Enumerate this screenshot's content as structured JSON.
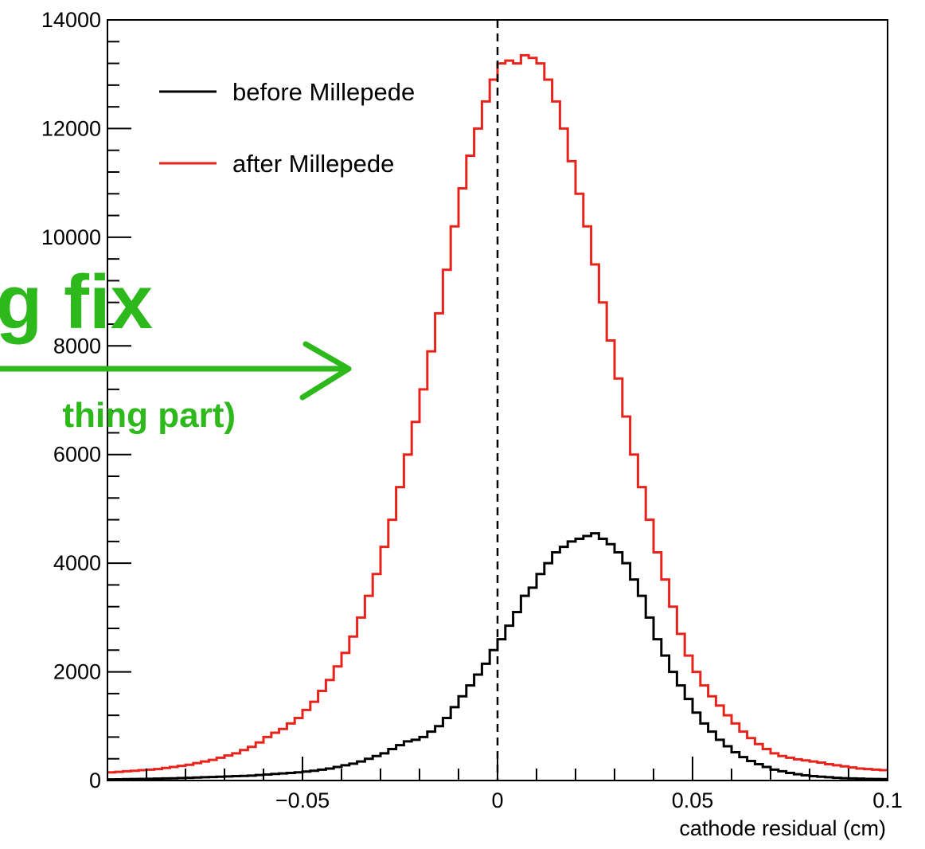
{
  "chart_data": {
    "type": "line",
    "step": true,
    "xlabel": "cathode residual (cm)",
    "ylabel": "",
    "xlim": [
      -0.1,
      0.1
    ],
    "ylim": [
      0,
      14000
    ],
    "x_ticks": [
      -0.05,
      0,
      0.05,
      0.1
    ],
    "x_tick_labels": [
      "−0.05",
      "0",
      "0.05",
      "0.1"
    ],
    "y_ticks": [
      0,
      2000,
      4000,
      6000,
      8000,
      10000,
      12000,
      14000
    ],
    "y_tick_labels": [
      "0",
      "2000",
      "4000",
      "6000",
      "8000",
      "10000",
      "12000",
      "14000"
    ],
    "bin_edges_start": -0.1,
    "bin_width": 0.002,
    "reference_line_x": 0,
    "legend_position": "top-left",
    "series": [
      {
        "name": "before Millepede",
        "color": "#000000",
        "values": [
          20,
          22,
          25,
          28,
          30,
          32,
          35,
          38,
          40,
          45,
          50,
          55,
          60,
          65,
          70,
          75,
          80,
          85,
          90,
          100,
          110,
          120,
          130,
          140,
          150,
          165,
          180,
          200,
          220,
          250,
          280,
          310,
          350,
          400,
          450,
          500,
          580,
          650,
          720,
          750,
          800,
          900,
          1000,
          1150,
          1350,
          1550,
          1750,
          1950,
          2150,
          2400,
          2600,
          2850,
          3100,
          3400,
          3550,
          3800,
          4000,
          4200,
          4300,
          4400,
          4450,
          4500,
          4550,
          4450,
          4350,
          4200,
          4000,
          3700,
          3400,
          3000,
          2600,
          2300,
          2000,
          1750,
          1500,
          1250,
          1050,
          900,
          750,
          630,
          520,
          430,
          360,
          300,
          250,
          200,
          170,
          140,
          115,
          95,
          80,
          70,
          60,
          50,
          42,
          38,
          34,
          30,
          27,
          25
        ]
      },
      {
        "name": "after Millepede",
        "color": "#e8231b",
        "values": [
          150,
          160,
          170,
          180,
          190,
          200,
          210,
          230,
          250,
          270,
          290,
          320,
          350,
          380,
          420,
          460,
          500,
          560,
          620,
          700,
          800,
          880,
          950,
          1050,
          1150,
          1300,
          1450,
          1650,
          1850,
          2100,
          2350,
          2650,
          3000,
          3400,
          3800,
          4300,
          4800,
          5400,
          6000,
          6600,
          7200,
          7900,
          8600,
          9400,
          10200,
          10900,
          11500,
          12000,
          12500,
          12900,
          13200,
          13250,
          13200,
          13350,
          13300,
          13200,
          12900,
          12500,
          12000,
          11400,
          10800,
          10200,
          9500,
          8800,
          8100,
          7400,
          6700,
          6000,
          5400,
          4800,
          4200,
          3700,
          3200,
          2700,
          2300,
          2000,
          1750,
          1550,
          1380,
          1200,
          1050,
          900,
          780,
          670,
          580,
          500,
          450,
          420,
          390,
          370,
          350,
          330,
          300,
          280,
          260,
          240,
          220,
          210,
          200,
          190
        ]
      }
    ]
  },
  "legend": {
    "items": [
      {
        "label": "before Millepede",
        "color": "#000000"
      },
      {
        "label": "after Millepede",
        "color": "#e8231b"
      }
    ]
  },
  "annotation": {
    "text_line1": "g fix",
    "text_line2": "thing part)",
    "color": "#2db81c"
  }
}
